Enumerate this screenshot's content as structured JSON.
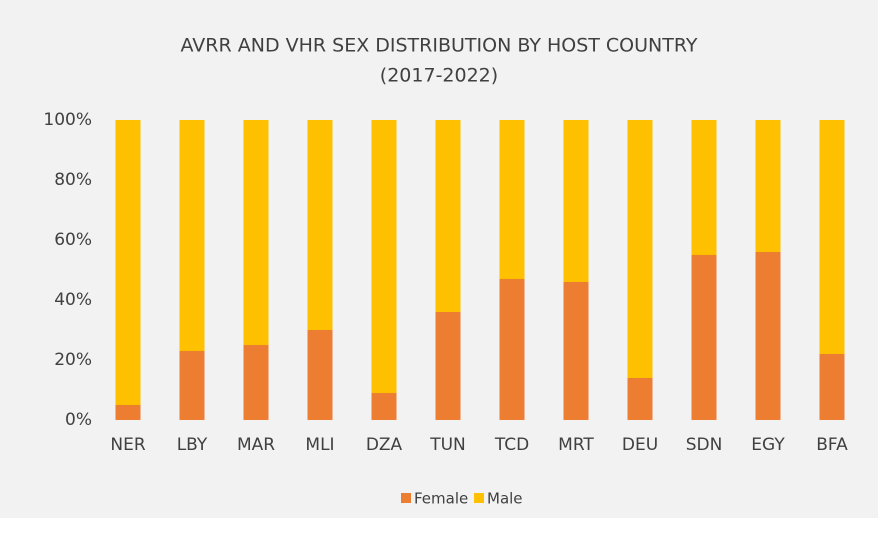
{
  "chart_data": {
    "type": "bar",
    "stacked": true,
    "title": [
      "AVRR AND VHR SEX DISTRIBUTION BY HOST COUNTRY",
      "(2017-2022)"
    ],
    "categories": [
      "NER",
      "LBY",
      "MAR",
      "MLI",
      "DZA",
      "TUN",
      "TCD",
      "MRT",
      "DEU",
      "SDN",
      "EGY",
      "BFA"
    ],
    "series": [
      {
        "name": "Female",
        "color": "#ed7d31",
        "values": [
          5,
          23,
          25,
          30,
          9,
          36,
          47,
          46,
          14,
          55,
          56,
          22
        ]
      },
      {
        "name": "Male",
        "color": "#ffc000",
        "values": [
          95,
          77,
          75,
          70,
          91,
          64,
          53,
          54,
          86,
          45,
          44,
          78
        ]
      }
    ],
    "ylim": [
      0,
      100
    ],
    "yticks": [
      {
        "value": 0,
        "label": "0%"
      },
      {
        "value": 20,
        "label": "20%"
      },
      {
        "value": 40,
        "label": "40%"
      },
      {
        "value": 60,
        "label": "60%"
      },
      {
        "value": 80,
        "label": "80%"
      },
      {
        "value": 100,
        "label": "100%"
      }
    ],
    "grid": false,
    "legend": "bottom"
  }
}
